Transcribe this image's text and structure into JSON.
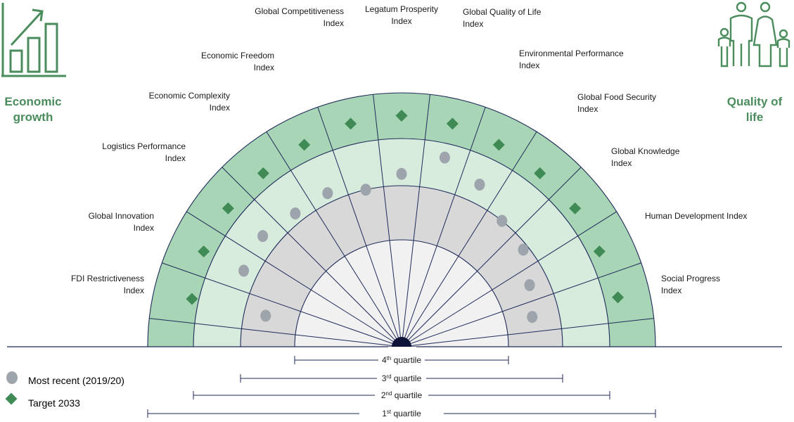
{
  "left_panel": {
    "title_line1": "Economic",
    "title_line2": "growth",
    "icon": "bar-chart-growth-icon"
  },
  "right_panel": {
    "title_line1": "Quality of",
    "title_line2": "life",
    "icon": "family-icon"
  },
  "colors": {
    "outer_band": "#a8d5b5",
    "third_band": "#d7ecdd",
    "second_band": "#d8d8d8",
    "inner_band": "#f1f1f1",
    "line": "#1f2a5a",
    "recent_marker": "#9ea4ab",
    "target_marker": "#3f8a55",
    "title_green": "#4a8c5c"
  },
  "indices": [
    {
      "line1": "FDI Restrictiveness",
      "line2": "Index",
      "group": "Economic growth"
    },
    {
      "line1": "Global Innovation",
      "line2": "Index",
      "group": "Economic growth"
    },
    {
      "line1": "Logistics Performance",
      "line2": "Index",
      "group": "Economic growth"
    },
    {
      "line1": "Economic Complexity",
      "line2": "Index",
      "group": "Economic growth"
    },
    {
      "line1": "Economic Freedom",
      "line2": "Index",
      "group": "Economic growth"
    },
    {
      "line1": "Global Competitiveness",
      "line2": "Index",
      "group": "Economic growth"
    },
    {
      "line1": "Legatum Prosperity",
      "line2": "Index",
      "group": "Quality of life"
    },
    {
      "line1": "Global Quality of Life",
      "line2": "Index",
      "group": "Quality of life"
    },
    {
      "line1": "Environmental Performance",
      "line2": "Index",
      "group": "Quality of life"
    },
    {
      "line1": "Global Food Security",
      "line2": "Index",
      "group": "Quality of life"
    },
    {
      "line1": "Global Knowledge",
      "line2": "Index",
      "group": "Quality of life"
    },
    {
      "line1": "Human Development Index",
      "line2": "",
      "group": "Quality of life"
    },
    {
      "line1": "Social Progress",
      "line2": "Index",
      "group": "Quality of life"
    }
  ],
  "quartiles": [
    {
      "base": "4",
      "sup": "th",
      "text": " quartile"
    },
    {
      "base": "3",
      "sup": "rd",
      "text": " quartile"
    },
    {
      "base": "2",
      "sup": "nd",
      "text": " quartile"
    },
    {
      "base": "1",
      "sup": "st",
      "text": " quartile"
    }
  ],
  "legend": {
    "recent": "Most recent (2019/20)",
    "target": "Target 2033"
  },
  "chart_data": {
    "type": "radial-half-dial",
    "quartile_scale_note": "position measured outward from center: 0–1 = 4th quartile, 1–2 = 3rd, 2–3 = 2nd, 3–4 = 1st",
    "most_recent_2019_20": [
      1.6,
      2.3,
      2.35,
      2.2,
      2.2,
      2.0,
      2.25,
      2.7,
      2.4,
      2.0,
      1.9,
      1.65,
      1.5
    ],
    "target_2033": [
      3.15,
      3.25,
      3.3,
      3.3,
      3.35,
      3.45,
      3.5,
      3.45,
      3.35,
      3.3,
      3.3,
      3.25,
      3.3
    ]
  }
}
